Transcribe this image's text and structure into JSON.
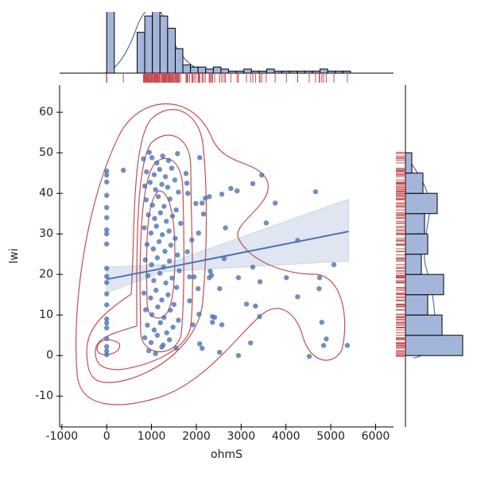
{
  "chart_data": {
    "type": "scatter",
    "x_label": "ohmS",
    "y_label": "lwi",
    "x": [
      0,
      0,
      0,
      0,
      0,
      0,
      0,
      0,
      0,
      0,
      0,
      0,
      0,
      0,
      0,
      0,
      0,
      0,
      0,
      0,
      0,
      372,
      1580,
      2075,
      1770,
      1790,
      1810,
      1990,
      2130,
      2160,
      2290,
      2200,
      2570,
      2770,
      2910,
      3260,
      3460,
      3760,
      3560,
      4260,
      2620,
      3260,
      2290,
      2940,
      3420,
      4010,
      4750,
      5070,
      2520,
      3120,
      3320,
      4260,
      4740,
      4800,
      4900,
      4840,
      5370,
      4520,
      2940,
      2520,
      3210,
      2075,
      2130,
      2360,
      2360,
      2410,
      2570,
      3410,
      2310,
      1850,
      1950,
      2340,
      2040,
      2060,
      1920,
      4660,
      2650,
      1900,
      2050,
      1800,
      1850,
      820,
      950,
      1010,
      1120,
      1250,
      1380,
      1450,
      890,
      1060,
      1180,
      1310,
      1520,
      850,
      970,
      1090,
      1230,
      1360,
      1600,
      880,
      1020,
      1150,
      1280,
      1410,
      1550,
      930,
      1070,
      1200,
      1330,
      1470,
      1650,
      840,
      990,
      1110,
      1240,
      1390,
      1530,
      900,
      1040,
      1170,
      1300,
      1430,
      1580,
      860,
      1000,
      1130,
      1270,
      1400,
      1620,
      920,
      1050,
      1190,
      1320,
      1460,
      1560,
      830,
      980,
      1100,
      1230,
      1370,
      1500,
      870,
      1010,
      1140,
      1280,
      1420,
      1600,
      910,
      1060,
      1200,
      1340,
      1480,
      850,
      990,
      1130,
      1260,
      1400,
      1550,
      940,
      1090,
      1230
    ],
    "y": [
      45.5,
      44.5,
      42.8,
      39.5,
      36.5,
      34,
      31,
      30,
      27.5,
      21.5,
      19.5,
      18,
      15.2,
      12.5,
      9,
      8,
      6.8,
      4.2,
      2.2,
      1.1,
      0.2,
      45.7,
      49.8,
      48.8,
      44.9,
      42.5,
      40,
      37.5,
      37.6,
      34.9,
      39.2,
      38.8,
      39.8,
      41.2,
      40.6,
      42.4,
      44.5,
      37.6,
      32.7,
      28.4,
      23.9,
      21.8,
      19.2,
      19.2,
      18.2,
      19.2,
      19.2,
      22.4,
      16.5,
      12.7,
      12.2,
      14.5,
      16.5,
      8.2,
      4.1,
      2.5,
      2.5,
      -0.2,
      0,
      0.8,
      3.1,
      2.9,
      1.8,
      8.2,
      9.6,
      9.4,
      7.6,
      9.6,
      20.8,
      19.4,
      19.4,
      19.8,
      16.5,
      10.2,
      7.6,
      40.4,
      31.5,
      28.5,
      30.2,
      25.6,
      13.5,
      48.5,
      50.1,
      48.8,
      47.5,
      49.2,
      48.1,
      46.2,
      45.3,
      44.6,
      45.9,
      44.1,
      43.3,
      41.8,
      42.7,
      40.9,
      42.2,
      41.5,
      40.3,
      38.4,
      37.1,
      39.2,
      36.8,
      38.6,
      35.9,
      34.7,
      33.8,
      35.2,
      33.1,
      34.4,
      32.6,
      31.5,
      30.2,
      31.9,
      29.8,
      30.7,
      28.9,
      27.4,
      26.3,
      28.1,
      25.7,
      27.2,
      24.8,
      23.6,
      22.4,
      24.1,
      21.8,
      23.3,
      20.9,
      19.7,
      18.5,
      20.3,
      17.9,
      19.1,
      16.8,
      15.4,
      14.2,
      16.1,
      13.7,
      15.0,
      12.6,
      11.3,
      10.1,
      12.0,
      9.4,
      11.2,
      8.7,
      7.5,
      6.3,
      8.1,
      5.6,
      7.0,
      4.4,
      3.2,
      5.0,
      2.6,
      3.9,
      1.8,
      1.2,
      0.5,
      2.1
    ],
    "color": "#4c72b0",
    "rug_color": "#c44e52",
    "contour_color": "#c44e52",
    "xlim": [
      -1050,
      6400
    ],
    "xticks": [
      -1000,
      0,
      1000,
      2000,
      3000,
      4000,
      5000,
      6000
    ],
    "ylim": [
      -17.6,
      66.7
    ],
    "yticks": [
      -10,
      0,
      10,
      20,
      30,
      40,
      50,
      60
    ],
    "regression": {
      "x": [
        0,
        1300,
        5400
      ],
      "y": [
        18.8,
        21.6,
        30.6
      ],
      "ci_low": [
        15.5,
        20.7,
        23.3
      ],
      "ci_high": [
        21.8,
        22.5,
        38.6
      ]
    },
    "x_hist": {
      "bins": [
        0,
        170,
        340,
        510,
        680,
        850,
        1020,
        1190,
        1360,
        1530,
        1700,
        1870,
        2040,
        2210,
        2380,
        2550,
        2720,
        2890,
        3060,
        3230,
        3400,
        3570,
        3740,
        3910,
        4080,
        4250,
        4420,
        4590,
        4760,
        4930,
        5100,
        5270,
        5440
      ],
      "counts": [
        60,
        0,
        0,
        0,
        20,
        28,
        32,
        28,
        22,
        12,
        4,
        3,
        3,
        2,
        3,
        2,
        1,
        1,
        2,
        1,
        1,
        2,
        1,
        1,
        1,
        1,
        1,
        1,
        2,
        1,
        1,
        1
      ],
      "ylim": [
        0,
        30
      ]
    },
    "y_hist": {
      "bins": [
        0,
        5,
        10,
        15,
        20,
        25,
        30,
        35,
        40,
        45,
        50
      ],
      "counts": [
        36,
        23,
        14,
        24,
        10,
        14,
        12,
        20,
        11,
        4
      ],
      "xlim": [
        0,
        36
      ]
    },
    "hist_color": "#a3b5da"
  }
}
